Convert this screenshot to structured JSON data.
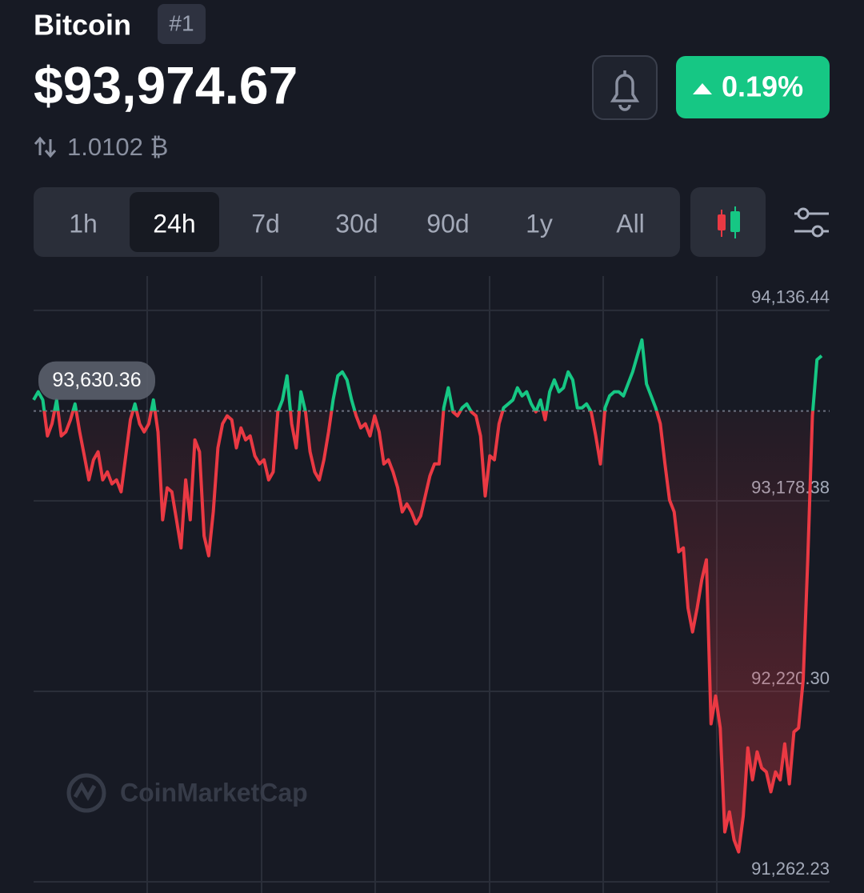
{
  "header": {
    "name": "Bitcoin",
    "rank": "#1",
    "price": "$93,974.67",
    "btc_ratio": "1.0102 ₿",
    "change": "0.19%"
  },
  "timeframes": [
    "1h",
    "24h",
    "7d",
    "30d",
    "90d",
    "1y",
    "All"
  ],
  "selected_timeframe": 1,
  "watermark": "CoinMarketCap",
  "chart_data": {
    "type": "line",
    "up_color": "#16c784",
    "down_color": "#ea3943",
    "ylim": [
      91206,
      94309
    ],
    "yticks": [
      {
        "value": 91262.23,
        "label": "91,262.23"
      },
      {
        "value": 92220.3,
        "label": "92,220.30"
      },
      {
        "value": 93178.38,
        "label": "93,178.38"
      },
      {
        "value": 94136.44,
        "label": "94,136.44"
      }
    ],
    "reference": {
      "value": 93630.36,
      "label": "93,630.36"
    },
    "values": [
      93686,
      93727,
      93686,
      93505,
      93566,
      93686,
      93505,
      93525,
      93586,
      93666,
      93525,
      93405,
      93284,
      93385,
      93425,
      93284,
      93324,
      93264,
      93284,
      93224,
      93405,
      93586,
      93666,
      93566,
      93525,
      93566,
      93686,
      93525,
      93083,
      93244,
      93224,
      93083,
      92942,
      93284,
      93083,
      93485,
      93425,
      93002,
      92902,
      93123,
      93445,
      93566,
      93606,
      93586,
      93445,
      93545,
      93485,
      93505,
      93405,
      93364,
      93385,
      93284,
      93324,
      93626,
      93686,
      93807,
      93566,
      93445,
      93727,
      93626,
      93425,
      93324,
      93284,
      93385,
      93525,
      93686,
      93807,
      93827,
      93787,
      93686,
      93606,
      93545,
      93566,
      93505,
      93606,
      93525,
      93364,
      93385,
      93324,
      93244,
      93123,
      93163,
      93123,
      93063,
      93103,
      93203,
      93304,
      93364,
      93364,
      93646,
      93747,
      93626,
      93606,
      93646,
      93666,
      93626,
      93606,
      93505,
      93203,
      93405,
      93385,
      93566,
      93646,
      93666,
      93686,
      93747,
      93706,
      93727,
      93666,
      93626,
      93686,
      93586,
      93727,
      93787,
      93727,
      93747,
      93827,
      93787,
      93646,
      93646,
      93666,
      93626,
      93505,
      93364,
      93646,
      93706,
      93727,
      93727,
      93706,
      93767,
      93827,
      93908,
      93988,
      93767,
      93706,
      93646,
      93566,
      93364,
      93183,
      93123,
      92922,
      92942,
      92640,
      92519,
      92640,
      92781,
      92882,
      92057,
      92197,
      92036,
      91513,
      91614,
      91473,
      91413,
      91594,
      91936,
      91775,
      91916,
      91835,
      91815,
      91715,
      91815,
      91775,
      91956,
      91755,
      92016,
      92036,
      92278,
      92882,
      93606,
      93888,
      93908
    ]
  }
}
